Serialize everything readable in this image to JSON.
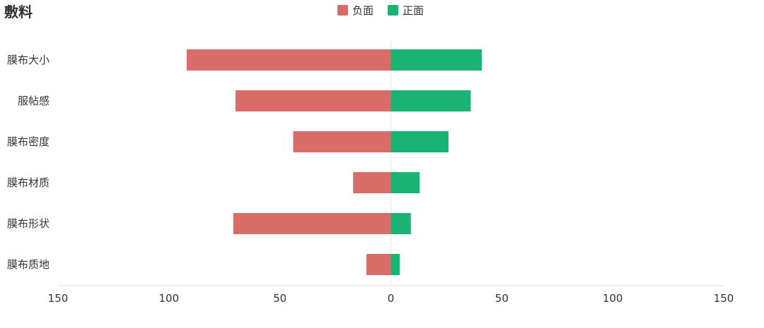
{
  "chart_data": {
    "type": "bar",
    "orientation": "horizontal-diverging",
    "title": "敷料",
    "categories": [
      "膜布大小",
      "服帖感",
      "膜布密度",
      "膜布材质",
      "膜布形状",
      "膜布质地"
    ],
    "series": [
      {
        "name": "负面",
        "values": [
          -92,
          -70,
          -44,
          -17,
          -71,
          -11
        ],
        "color": "#d96b68"
      },
      {
        "name": "正面",
        "values": [
          41,
          36,
          26,
          13,
          9,
          4
        ],
        "color": "#1ab373"
      }
    ],
    "xlim": [
      -150,
      150
    ],
    "x_ticks": [
      -150,
      -100,
      -50,
      0,
      50,
      100,
      150
    ],
    "x_tick_labels": [
      "150",
      "100",
      "50",
      "0",
      "50",
      "100",
      "150"
    ],
    "legend_position": "top-center",
    "grid": false
  }
}
